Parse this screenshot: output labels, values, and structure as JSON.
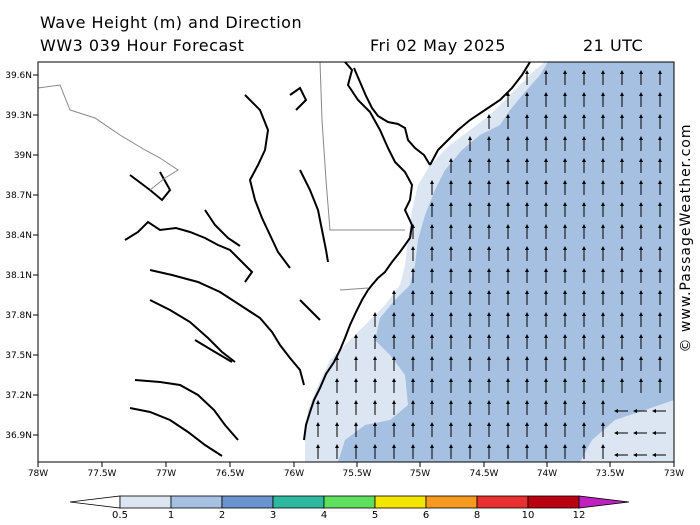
{
  "header": {
    "title_line1": "Wave Height (m) and Direction",
    "title_line2": "WW3 039 Hour Forecast",
    "date": "Fri 02 May 2025",
    "time": "21 UTC"
  },
  "credit": "© www.PassageWeather.com",
  "axes": {
    "lat_labels": [
      "39.6N",
      "39.3N",
      "39N",
      "38.7N",
      "38.4N",
      "38.1N",
      "37.8N",
      "37.5N",
      "37.2N",
      "36.9N"
    ],
    "lon_labels": [
      "78W",
      "77.5W",
      "77W",
      "76.5W",
      "76W",
      "75.5W",
      "75W",
      "74.5W",
      "74W",
      "73.5W",
      "73W"
    ]
  },
  "legend": {
    "labels": [
      "0.5",
      "1",
      "2",
      "3",
      "4",
      "5",
      "6",
      "8",
      "10",
      "12"
    ],
    "colors": [
      "#ffffff",
      "#dce6f2",
      "#a6c0e2",
      "#6a94cf",
      "#2fb8a0",
      "#5ee05e",
      "#f5e600",
      "#f59a1e",
      "#e83030",
      "#b80010",
      "#c020c0"
    ]
  },
  "map": {
    "sea_state": "0.5-1 m near coast, 1-2 m offshore",
    "arrow_direction": "north",
    "arrow_direction_southeast": "west"
  }
}
